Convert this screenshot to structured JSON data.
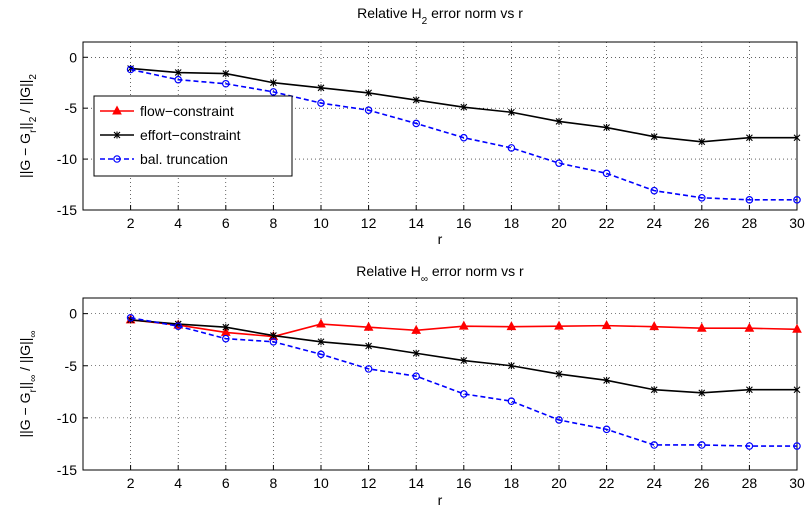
{
  "chart_data": [
    {
      "type": "line",
      "title": [
        "Relative H",
        "2",
        " error norm vs r"
      ],
      "xlabel": "r",
      "ylabel": [
        "||G − G",
        "r",
        "||",
        "2",
        " / ||G||",
        "2"
      ],
      "x": [
        2,
        4,
        6,
        8,
        10,
        12,
        14,
        16,
        18,
        20,
        22,
        24,
        26,
        28,
        30
      ],
      "xlim": [
        0,
        30
      ],
      "xticks": [
        2,
        4,
        6,
        8,
        10,
        12,
        14,
        16,
        18,
        20,
        22,
        24,
        26,
        28,
        30
      ],
      "ylim": [
        -15,
        1.5
      ],
      "yticks": [
        -15,
        -10,
        -5,
        0
      ],
      "grid": true,
      "legend": "center left",
      "series": [
        {
          "name": "flow−constraint",
          "color": "#ff0000",
          "marker": "triangle",
          "linestyle": "solid",
          "values": [
            null,
            null,
            null,
            null,
            null,
            null,
            null,
            null,
            null,
            null,
            null,
            null,
            null,
            null,
            null
          ]
        },
        {
          "name": "effort−constraint",
          "color": "#000000",
          "marker": "star",
          "linestyle": "solid",
          "values": [
            -1.1,
            -1.5,
            -1.6,
            -2.5,
            -3.0,
            -3.5,
            -4.2,
            -4.9,
            -5.4,
            -6.3,
            -6.9,
            -7.8,
            -8.3,
            -7.9,
            -7.9
          ]
        },
        {
          "name": "bal. truncation",
          "color": "#0000ff",
          "marker": "circle",
          "linestyle": "dashed",
          "values": [
            -1.2,
            -2.2,
            -2.6,
            -3.4,
            -4.5,
            -5.2,
            -6.5,
            -7.9,
            -8.9,
            -10.4,
            -11.4,
            -13.1,
            -13.8,
            -14.0,
            -14.0
          ]
        }
      ]
    },
    {
      "type": "line",
      "title": [
        "Relative H",
        "∞",
        " error norm vs r"
      ],
      "xlabel": "r",
      "ylabel": [
        "||G − G",
        "r",
        "||",
        "∞",
        " / ||G||",
        "∞"
      ],
      "x": [
        2,
        4,
        6,
        8,
        10,
        12,
        14,
        16,
        18,
        20,
        22,
        24,
        26,
        28,
        30
      ],
      "xlim": [
        0,
        30
      ],
      "xticks": [
        2,
        4,
        6,
        8,
        10,
        12,
        14,
        16,
        18,
        20,
        22,
        24,
        26,
        28,
        30
      ],
      "ylim": [
        -15,
        1.5
      ],
      "yticks": [
        -15,
        -10,
        -5,
        0
      ],
      "grid": true,
      "series": [
        {
          "color": "#ff0000",
          "marker": "triangle",
          "linestyle": "solid",
          "values": [
            -0.6,
            -1.1,
            -1.8,
            -2.2,
            -1.0,
            -1.3,
            -1.6,
            -1.2,
            -1.25,
            -1.2,
            -1.15,
            -1.25,
            -1.4,
            -1.4,
            -1.5
          ]
        },
        {
          "color": "#000000",
          "marker": "star",
          "linestyle": "solid",
          "values": [
            -0.6,
            -1.0,
            -1.3,
            -2.1,
            -2.7,
            -3.1,
            -3.8,
            -4.5,
            -5.0,
            -5.8,
            -6.4,
            -7.3,
            -7.6,
            -7.3,
            -7.3
          ]
        },
        {
          "color": "#0000ff",
          "marker": "circle",
          "linestyle": "dashed",
          "values": [
            -0.4,
            -1.2,
            -2.4,
            -2.7,
            -3.9,
            -5.3,
            -6.0,
            -7.7,
            -8.4,
            -10.2,
            -11.1,
            -12.6,
            -12.6,
            -12.7,
            -12.7
          ]
        }
      ]
    }
  ]
}
